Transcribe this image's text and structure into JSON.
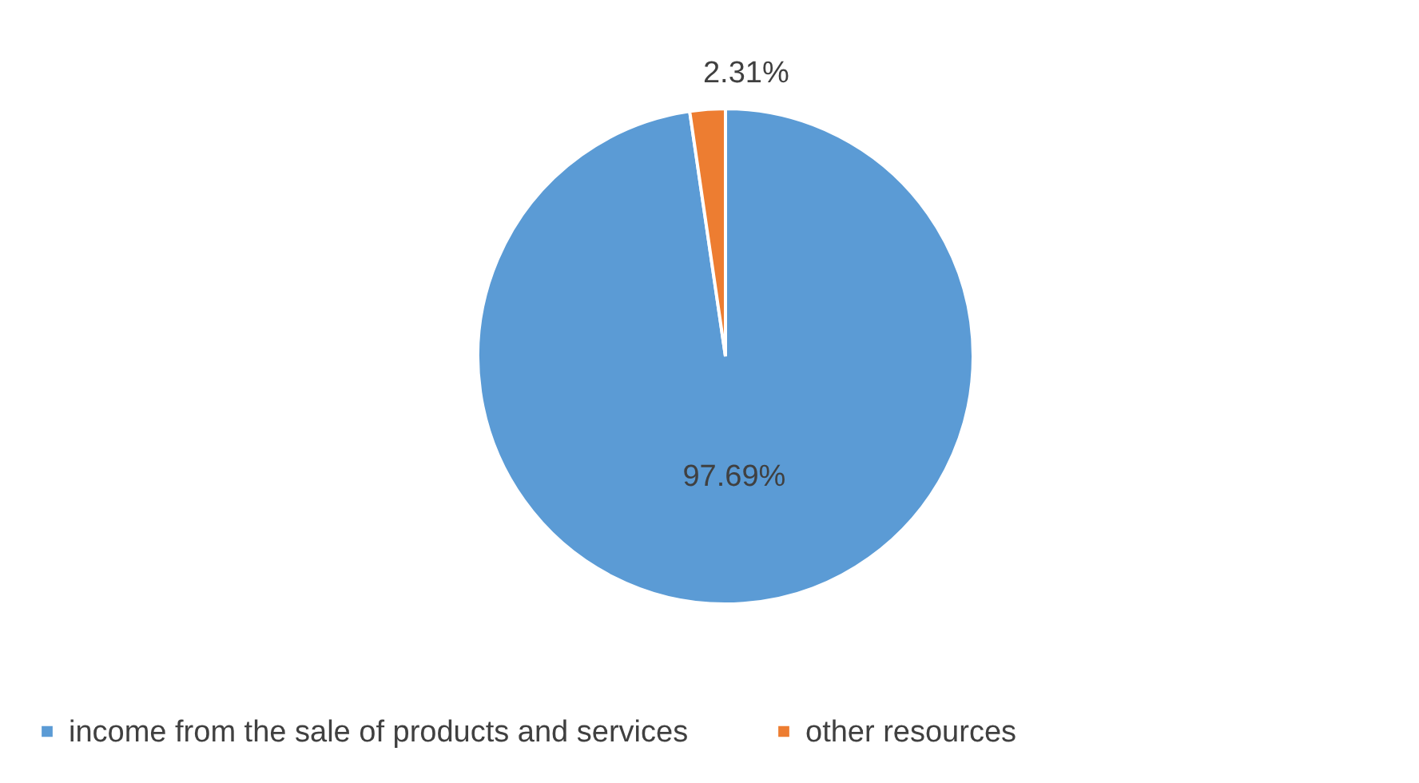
{
  "chart_data": {
    "type": "pie",
    "categories": [
      "income from the sale of products and services",
      "other resources"
    ],
    "values": [
      97.69,
      2.31
    ],
    "colors": [
      "#5b9bd5",
      "#ed7d31"
    ],
    "value_labels": [
      "97.69%",
      "2.31%"
    ],
    "legend": "bottom"
  }
}
